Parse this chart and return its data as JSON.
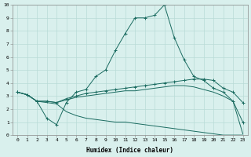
{
  "xlabel": "Humidex (Indice chaleur)",
  "xlim": [
    -0.5,
    23.5
  ],
  "ylim": [
    0,
    10
  ],
  "xticks": [
    0,
    1,
    2,
    3,
    4,
    5,
    6,
    7,
    8,
    9,
    10,
    11,
    12,
    13,
    14,
    15,
    16,
    17,
    18,
    19,
    20,
    21,
    22,
    23
  ],
  "yticks": [
    0,
    1,
    2,
    3,
    4,
    5,
    6,
    7,
    8,
    9,
    10
  ],
  "bg_color": "#d9f0ed",
  "line_color": "#1a6b60",
  "grid_color": "#b8dbd7",
  "series": [
    {
      "x": [
        0,
        1,
        2,
        3,
        4,
        5,
        6,
        7,
        8,
        9,
        10,
        11,
        12,
        13,
        14,
        15,
        16,
        17,
        18,
        19,
        20,
        21,
        22,
        23
      ],
      "y": [
        3.3,
        3.1,
        2.6,
        1.3,
        0.8,
        2.5,
        3.3,
        3.5,
        4.5,
        5.0,
        6.5,
        7.8,
        9.0,
        9.0,
        9.2,
        10.0,
        7.5,
        5.8,
        4.5,
        4.2,
        3.6,
        3.3,
        2.6,
        1.0
      ],
      "marker": "+"
    },
    {
      "x": [
        0,
        1,
        2,
        3,
        4,
        5,
        6,
        7,
        8,
        9,
        10,
        11,
        12,
        13,
        14,
        15,
        16,
        17,
        18,
        19,
        20,
        21,
        22,
        23
      ],
      "y": [
        3.3,
        3.1,
        2.6,
        2.6,
        2.5,
        2.8,
        3.0,
        3.2,
        3.3,
        3.4,
        3.5,
        3.6,
        3.7,
        3.8,
        3.9,
        4.0,
        4.1,
        4.2,
        4.3,
        4.3,
        4.2,
        3.6,
        3.3,
        2.5
      ],
      "marker": "+"
    },
    {
      "x": [
        0,
        1,
        2,
        3,
        4,
        5,
        6,
        7,
        8,
        9,
        10,
        11,
        12,
        13,
        14,
        15,
        16,
        17,
        18,
        19,
        20,
        21,
        22,
        23
      ],
      "y": [
        3.3,
        3.1,
        2.6,
        2.6,
        2.5,
        2.7,
        2.9,
        3.0,
        3.1,
        3.2,
        3.3,
        3.4,
        3.4,
        3.5,
        3.6,
        3.7,
        3.8,
        3.8,
        3.7,
        3.5,
        3.3,
        3.0,
        2.6,
        0.1
      ],
      "marker": null
    },
    {
      "x": [
        0,
        1,
        2,
        3,
        4,
        5,
        6,
        7,
        8,
        9,
        10,
        11,
        12,
        13,
        14,
        15,
        16,
        17,
        18,
        19,
        20,
        21,
        22,
        23
      ],
      "y": [
        3.3,
        3.1,
        2.6,
        2.5,
        2.4,
        1.8,
        1.5,
        1.3,
        1.2,
        1.1,
        1.0,
        1.0,
        0.9,
        0.8,
        0.7,
        0.6,
        0.5,
        0.4,
        0.3,
        0.2,
        0.1,
        0.0,
        0.0,
        0.0
      ],
      "marker": null
    }
  ]
}
